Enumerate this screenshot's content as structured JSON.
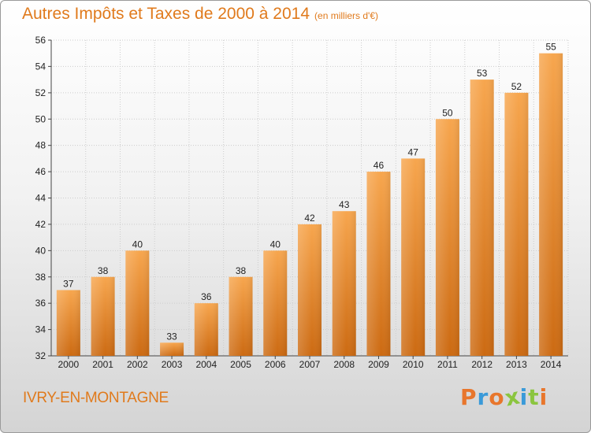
{
  "header": {
    "title": "Autres Impôts et Taxes de 2000 à 2014",
    "subtitle": "(en milliers d'€)"
  },
  "footer": {
    "commune": "IVRY-EN-MONTAGNE",
    "logo_text": "Proxiti"
  },
  "colors": {
    "accent": "#e07a1c",
    "bar_top": "#f7a64e",
    "bar_bottom": "#cc6a12",
    "grid": "#cccccc",
    "logo_letters": [
      "#e8762c",
      "#3a9ad9",
      "#e8762c",
      "#8bc53f",
      "#3a9ad9",
      "#8bc53f",
      "#e8762c"
    ]
  },
  "chart_data": {
    "type": "bar",
    "title": "Autres Impôts et Taxes de 2000 à 2014",
    "subtitle": "(en milliers d'€)",
    "xlabel": "",
    "ylabel": "",
    "categories": [
      "2000",
      "2001",
      "2002",
      "2003",
      "2004",
      "2005",
      "2006",
      "2007",
      "2008",
      "2009",
      "2010",
      "2011",
      "2012",
      "2013",
      "2014"
    ],
    "values": [
      37,
      38,
      40,
      33,
      36,
      38,
      40,
      42,
      43,
      46,
      47,
      50,
      53,
      52,
      55
    ],
    "ylim": [
      32,
      56
    ],
    "yticks": [
      32,
      34,
      36,
      38,
      40,
      42,
      44,
      46,
      48,
      50,
      52,
      54,
      56
    ],
    "grid": true,
    "data_labels": true
  }
}
